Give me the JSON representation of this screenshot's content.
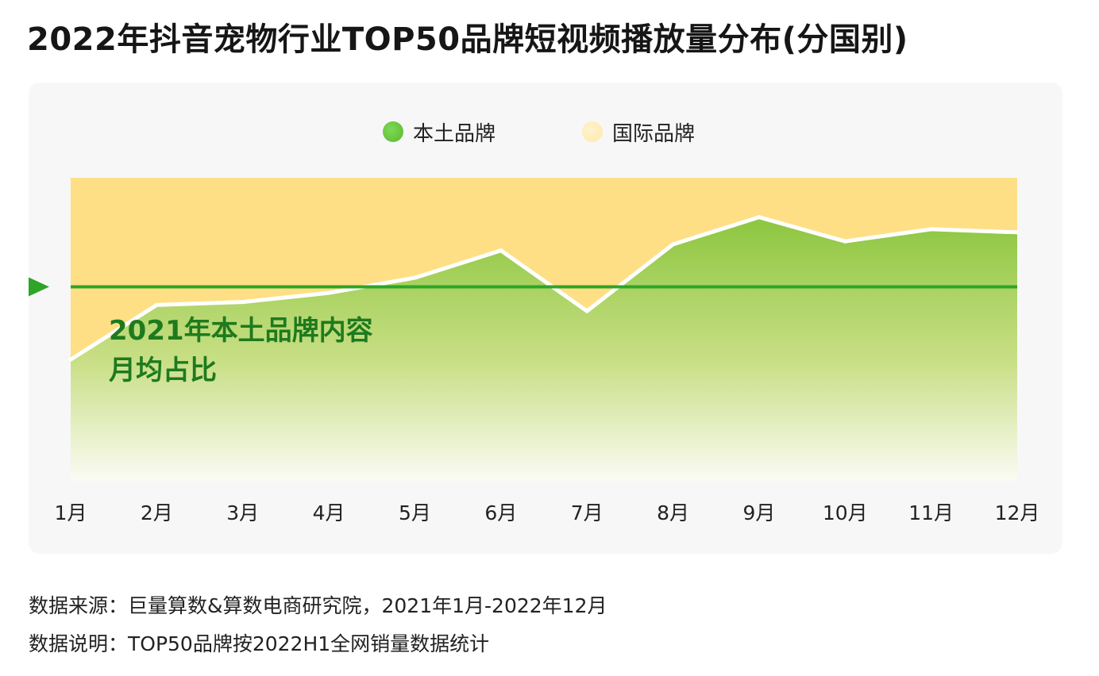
{
  "title": "2022年抖音宠物行业TOP50品牌短视频播放量分布(分国别)",
  "legend": {
    "domestic": "本土品牌",
    "international": "国际品牌"
  },
  "colors": {
    "domestic": "#8cc63f",
    "domestic_dot": "#5cb82a",
    "international": "#ffdf86",
    "international_dot": "#ffe9a6",
    "reference_line": "#2ea528",
    "reference_text": "#1e7a1e"
  },
  "reference": {
    "label_line1": "2021年本土品牌内容",
    "label_line2": "月均占比",
    "value": 64
  },
  "chart_data": {
    "type": "area",
    "categories": [
      "1月",
      "2月",
      "3月",
      "4月",
      "5月",
      "6月",
      "7月",
      "8月",
      "9月",
      "10月",
      "11月",
      "12月"
    ],
    "series": [
      {
        "name": "本土品牌",
        "values": [
          40,
          58,
          59,
          62,
          67,
          76,
          56,
          78,
          87,
          79,
          83,
          82
        ]
      },
      {
        "name": "国际品牌",
        "values": [
          60,
          42,
          41,
          38,
          33,
          24,
          44,
          22,
          13,
          21,
          17,
          18
        ]
      }
    ],
    "stacked": true,
    "ylim": [
      0,
      100
    ],
    "reference_line": 64
  },
  "notes": {
    "source": "数据来源：巨量算数&算数电商研究院，2021年1月-2022年12月",
    "explanation": "数据说明：TOP50品牌按2022H1全网销量数据统计"
  }
}
